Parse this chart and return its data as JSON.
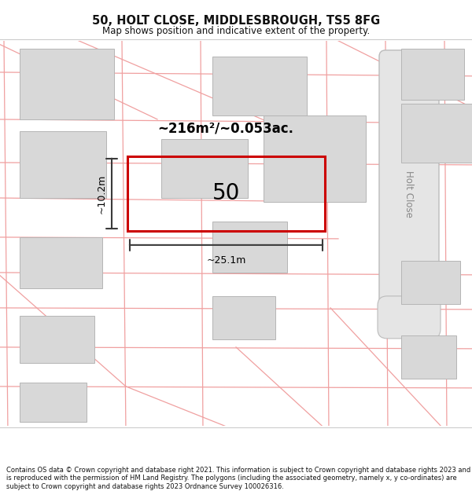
{
  "title_line1": "50, HOLT CLOSE, MIDDLESBROUGH, TS5 8FG",
  "title_line2": "Map shows position and indicative extent of the property.",
  "footer_text": "Contains OS data © Crown copyright and database right 2021. This information is subject to Crown copyright and database rights 2023 and is reproduced with the permission of HM Land Registry. The polygons (including the associated geometry, namely x, y co-ordinates) are subject to Crown copyright and database rights 2023 Ordnance Survey 100026316.",
  "area_label": "~216m²/~0.053ac.",
  "width_label": "~25.1m",
  "height_label": "~10.2m",
  "property_number": "50",
  "road_label": "Holt Close",
  "map_bg": "#ffffff",
  "building_fill": "#d8d8d8",
  "building_edge": "#b5b5b5",
  "property_outline": "#cc0000",
  "cadastral_line": "#f0a0a0",
  "dim_line_color": "#3a3a3a",
  "road_fill": "#e5e5e5",
  "road_line": "#bbbbbb"
}
